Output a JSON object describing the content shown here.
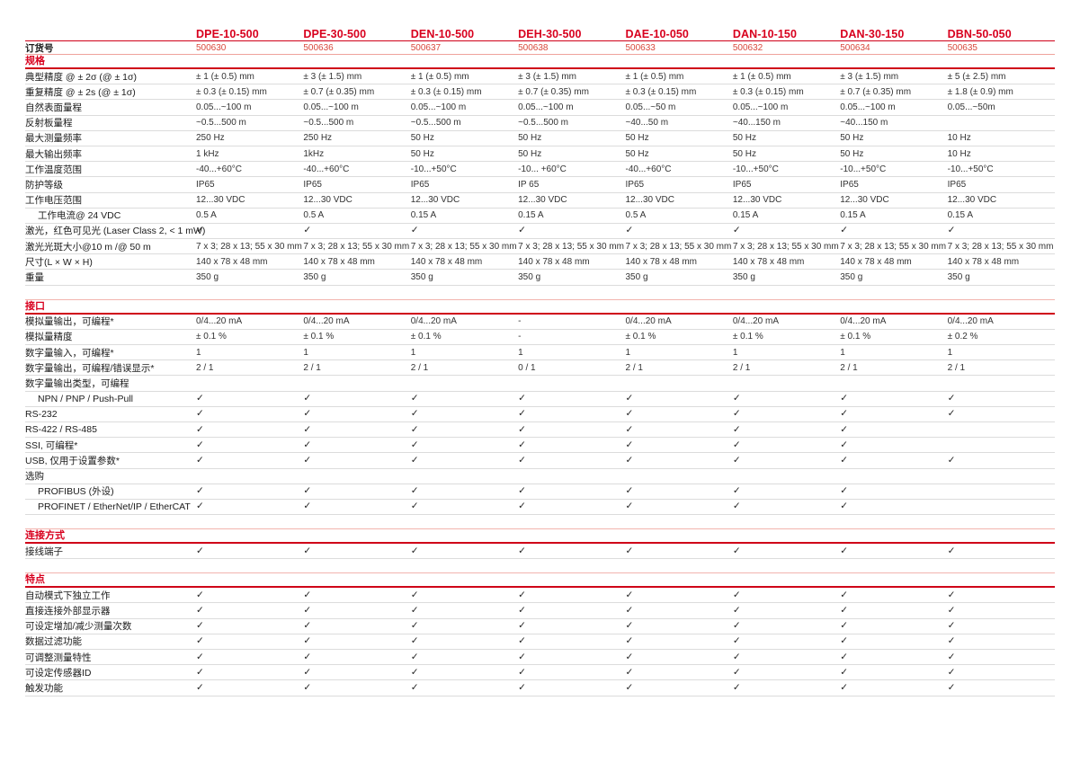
{
  "colors": {
    "accent_red": "#d8001e",
    "order_number_red": "#d9493d",
    "row_line_gray": "#dcdcdc",
    "section_rule_red": "#cf0018",
    "pale_rule_red": "#efa29b"
  },
  "check_glyph": "✓",
  "order_label": "订货号",
  "products": [
    {
      "model": "DPE-10-500",
      "order": "500630"
    },
    {
      "model": "DPE-30-500",
      "order": "500636"
    },
    {
      "model": "DEN-10-500",
      "order": "500637"
    },
    {
      "model": "DEH-30-500",
      "order": "500638"
    },
    {
      "model": "DAE-10-050",
      "order": "500633"
    },
    {
      "model": "DAN-10-150",
      "order": "500632"
    },
    {
      "model": "DAN-30-150",
      "order": "500634"
    },
    {
      "model": "DBN-50-050",
      "order": "500635"
    }
  ],
  "sections": [
    {
      "id": "specifications",
      "title": "规格",
      "rows": [
        {
          "label": "典型精度 @ ± 2σ (@ ± 1σ)",
          "type": "text",
          "indent": false,
          "values": [
            "± 1 (± 0.5) mm",
            "± 3 (± 1.5) mm",
            "± 1 (± 0.5) mm",
            "± 3 (± 1.5) mm",
            "± 1 (± 0.5) mm",
            "± 1 (± 0.5) mm",
            "± 3 (± 1.5) mm",
            "± 5 (± 2.5) mm"
          ]
        },
        {
          "label": "重复精度 @ ± 2s (@ ± 1σ)",
          "type": "text",
          "indent": false,
          "values": [
            "± 0.3 (± 0.15) mm",
            "± 0.7 (± 0.35) mm",
            "± 0.3 (± 0.15) mm",
            "± 0.7 (± 0.35) mm",
            "± 0.3 (± 0.15) mm",
            "± 0.3 (± 0.15) mm",
            "± 0.7 (± 0.35) mm",
            "± 1.8 (± 0.9) mm"
          ]
        },
        {
          "label": "自然表面量程",
          "type": "text",
          "indent": false,
          "values": [
            "0.05...~100 m",
            "0.05...~100 m",
            "0.05...~100 m",
            "0.05...~100 m",
            "0.05...~50 m",
            "0.05...~100 m",
            "0.05...~100 m",
            "0.05...~50m"
          ]
        },
        {
          "label": "反射板量程",
          "type": "text",
          "indent": false,
          "values": [
            "~0.5...500 m",
            "~0.5...500 m",
            "~0.5...500 m",
            "~0.5...500 m",
            "~40...50 m",
            "~40...150 m",
            "~40...150 m",
            ""
          ]
        },
        {
          "label": "最大测量频率",
          "type": "text",
          "indent": false,
          "values": [
            "250 Hz",
            "250 Hz",
            "50 Hz",
            "50 Hz",
            "50 Hz",
            "50 Hz",
            "50 Hz",
            "10 Hz"
          ]
        },
        {
          "label": "最大输出频率",
          "type": "text",
          "indent": false,
          "values": [
            "1 kHz",
            "1kHz",
            "50 Hz",
            "50 Hz",
            "50 Hz",
            "50 Hz",
            "50 Hz",
            "10 Hz"
          ]
        },
        {
          "label": "工作温度范围",
          "type": "text",
          "indent": false,
          "values": [
            "-40...+60°C",
            "-40...+60°C",
            "-10...+50°C",
            "-10... +60°C",
            "-40...+60°C",
            "-10...+50°C",
            "-10...+50°C",
            "-10...+50°C"
          ]
        },
        {
          "label": "防护等级",
          "type": "text",
          "indent": false,
          "values": [
            "IP65",
            "IP65",
            "IP65",
            "IP 65",
            "IP65",
            "IP65",
            "IP65",
            "IP65"
          ]
        },
        {
          "label": "工作电压范围",
          "type": "text",
          "indent": false,
          "values": [
            "12...30 VDC",
            "12...30 VDC",
            "12...30 VDC",
            "12...30 VDC",
            "12...30 VDC",
            "12...30 VDC",
            "12...30 VDC",
            "12...30 VDC"
          ]
        },
        {
          "label": "工作电流@ 24 VDC",
          "type": "text",
          "indent": true,
          "values": [
            "0.5 A",
            "0.5 A",
            "0.15 A",
            "0.15 A",
            "0.5 A",
            "0.15 A",
            "0.15 A",
            "0.15 A"
          ]
        },
        {
          "label": "激光，红色可见光 (Laser Class 2, < 1 mW)",
          "type": "check",
          "indent": false,
          "values": [
            true,
            true,
            true,
            true,
            true,
            true,
            true,
            true
          ]
        },
        {
          "label": "激光光斑大小@10 m /@ 50 m",
          "type": "text",
          "indent": false,
          "values": [
            "7 x 3; 28 x 13; 55 x 30 mm",
            "7 x 3; 28 x 13; 55 x 30 mm",
            "7 x 3; 28 x 13; 55 x 30 mm",
            "7 x 3; 28 x 13; 55 x 30 mm",
            "7 x 3; 28 x 13; 55 x 30 mm",
            "7 x 3; 28 x 13; 55 x 30 mm",
            "7 x 3; 28 x 13; 55 x 30 mm",
            "7 x 3; 28 x 13; 55 x 30 mm"
          ]
        },
        {
          "label": "尺寸(L × W × H)",
          "type": "text",
          "indent": false,
          "values": [
            "140 x 78 x 48 mm",
            "140 x 78 x 48 mm",
            "140 x 78 x 48 mm",
            "140 x 78 x 48 mm",
            "140 x 78 x 48 mm",
            "140 x 78 x 48 mm",
            "140 x 78 x 48 mm",
            "140 x 78 x 48 mm"
          ]
        },
        {
          "label": "重量",
          "type": "text",
          "indent": false,
          "values": [
            "350 g",
            "350 g",
            "350 g",
            "350 g",
            "350 g",
            "350 g",
            "350 g",
            "350 g"
          ]
        }
      ]
    },
    {
      "id": "interface",
      "title": "接口",
      "rows": [
        {
          "label": "模拟量输出，可编程*",
          "type": "text",
          "indent": false,
          "values": [
            "0/4...20 mA",
            "0/4...20 mA",
            "0/4...20 mA",
            "-",
            "0/4...20 mA",
            "0/4...20 mA",
            "0/4...20 mA",
            "0/4...20 mA"
          ]
        },
        {
          "label": "模拟量精度",
          "type": "text",
          "indent": false,
          "values": [
            "± 0.1 %",
            "± 0.1 %",
            "± 0.1 %",
            "-",
            "± 0.1 %",
            "± 0.1 %",
            "± 0.1 %",
            "± 0.2 %"
          ]
        },
        {
          "label": "数字量输入，可编程*",
          "type": "text",
          "indent": false,
          "values": [
            "1",
            "1",
            "1",
            "1",
            "1",
            "1",
            "1",
            "1"
          ]
        },
        {
          "label": "数字量输出，可编程/错误显示*",
          "type": "text",
          "indent": false,
          "values": [
            "2 / 1",
            "2 / 1",
            "2 / 1",
            "0 / 1",
            "2 / 1",
            "2 / 1",
            "2 / 1",
            "2 / 1"
          ]
        },
        {
          "label": "数字量输出类型，可编程",
          "type": "subheader",
          "indent": false,
          "values": []
        },
        {
          "label": "NPN / PNP / Push-Pull",
          "type": "check",
          "indent": true,
          "values": [
            true,
            true,
            true,
            true,
            true,
            true,
            true,
            true
          ]
        },
        {
          "label": "RS-232",
          "type": "check",
          "indent": false,
          "values": [
            true,
            true,
            true,
            true,
            true,
            true,
            true,
            true
          ]
        },
        {
          "label": "RS-422 / RS-485",
          "type": "check",
          "indent": false,
          "values": [
            true,
            true,
            true,
            true,
            true,
            true,
            true,
            false
          ]
        },
        {
          "label": "SSI, 可编程*",
          "type": "check",
          "indent": false,
          "values": [
            true,
            true,
            true,
            true,
            true,
            true,
            true,
            false
          ]
        },
        {
          "label": "USB, 仅用于设置参数*",
          "type": "check",
          "indent": false,
          "values": [
            true,
            true,
            true,
            true,
            true,
            true,
            true,
            true
          ]
        },
        {
          "label": "选购",
          "type": "subheader",
          "indent": false,
          "values": []
        },
        {
          "label": "PROFIBUS (外设)",
          "type": "check",
          "indent": true,
          "values": [
            true,
            true,
            true,
            true,
            true,
            true,
            true,
            false
          ]
        },
        {
          "label": "PROFINET / EtherNet/IP / EtherCAT",
          "type": "check",
          "indent": true,
          "values": [
            true,
            true,
            true,
            true,
            true,
            true,
            true,
            false
          ]
        }
      ]
    },
    {
      "id": "connection",
      "title": "连接方式",
      "rows": [
        {
          "label": "接线端子",
          "type": "check",
          "indent": false,
          "values": [
            true,
            true,
            true,
            true,
            true,
            true,
            true,
            true
          ]
        }
      ]
    },
    {
      "id": "features",
      "title": "特点",
      "rows": [
        {
          "label": "自动模式下独立工作",
          "type": "check",
          "indent": false,
          "values": [
            true,
            true,
            true,
            true,
            true,
            true,
            true,
            true
          ]
        },
        {
          "label": "直接连接外部显示器",
          "type": "check",
          "indent": false,
          "values": [
            true,
            true,
            true,
            true,
            true,
            true,
            true,
            true
          ]
        },
        {
          "label": "可设定增加/减少测量次数",
          "type": "check",
          "indent": false,
          "values": [
            true,
            true,
            true,
            true,
            true,
            true,
            true,
            true
          ]
        },
        {
          "label": "数据过滤功能",
          "type": "check",
          "indent": false,
          "values": [
            true,
            true,
            true,
            true,
            true,
            true,
            true,
            true
          ]
        },
        {
          "label": "可调整测量特性",
          "type": "check",
          "indent": false,
          "values": [
            true,
            true,
            true,
            true,
            true,
            true,
            true,
            true
          ]
        },
        {
          "label": "可设定传感器ID",
          "type": "check",
          "indent": false,
          "values": [
            true,
            true,
            true,
            true,
            true,
            true,
            true,
            true
          ]
        },
        {
          "label": "触发功能",
          "type": "check",
          "indent": false,
          "values": [
            true,
            true,
            true,
            true,
            true,
            true,
            true,
            true
          ]
        }
      ]
    }
  ]
}
